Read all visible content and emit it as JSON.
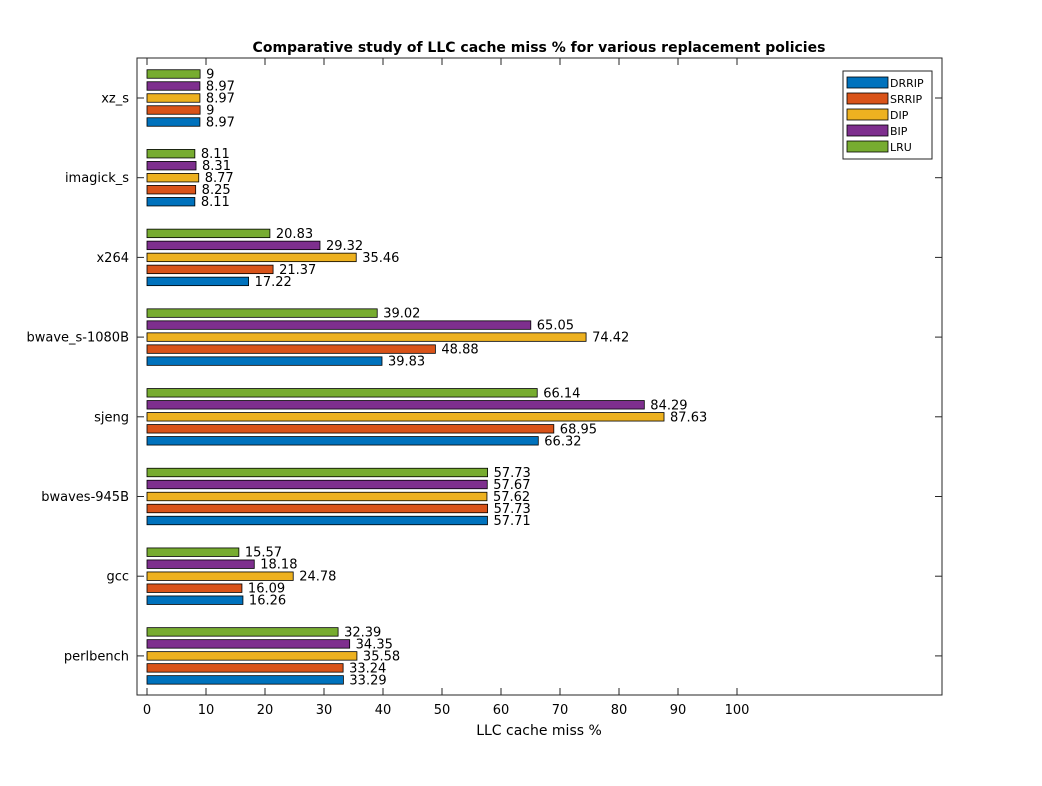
{
  "chart_data": {
    "type": "bar",
    "orientation": "horizontal",
    "title": "Comparative study of LLC cache miss % for various replacement policies",
    "xlabel": "LLC cache miss %",
    "ylabel": "",
    "xlim": [
      0,
      100
    ],
    "xticks": [
      0,
      10,
      20,
      30,
      40,
      50,
      60,
      70,
      80,
      90,
      100
    ],
    "grid": false,
    "legend_position": "top-right",
    "categories": [
      "perlbench",
      "gcc",
      "bwaves-945B",
      "sjeng",
      "bwave_s-1080B",
      "x264",
      "imagick_s",
      "xz_s"
    ],
    "series": [
      {
        "name": "DRRIP",
        "color": "#0072BD",
        "values": [
          33.29,
          16.26,
          57.71,
          66.32,
          39.83,
          17.22,
          8.11,
          8.97
        ]
      },
      {
        "name": "SRRIP",
        "color": "#D95319",
        "values": [
          33.24,
          16.09,
          57.73,
          68.95,
          48.88,
          21.37,
          8.25,
          9
        ]
      },
      {
        "name": "DIP",
        "color": "#EDB120",
        "values": [
          35.58,
          24.78,
          57.62,
          87.63,
          74.42,
          35.46,
          8.77,
          8.97
        ]
      },
      {
        "name": "BIP",
        "color": "#7E2F8E",
        "values": [
          34.35,
          18.18,
          57.67,
          84.29,
          65.05,
          29.32,
          8.31,
          8.97
        ]
      },
      {
        "name": "LRU",
        "color": "#77AC30",
        "values": [
          32.39,
          15.57,
          57.73,
          66.14,
          39.02,
          20.83,
          8.11,
          9
        ]
      }
    ]
  }
}
